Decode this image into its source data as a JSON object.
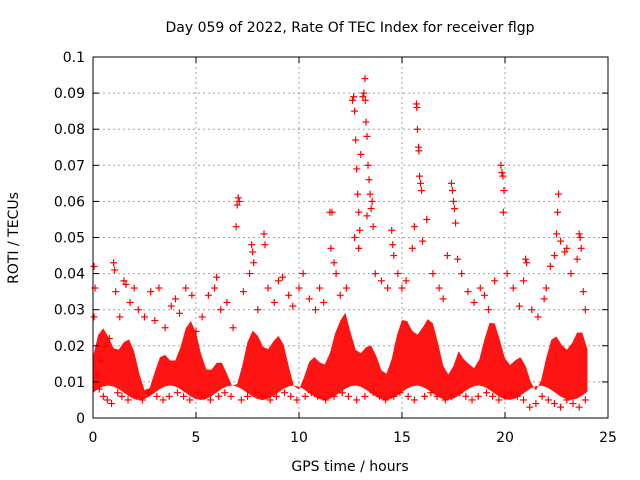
{
  "chart_data": {
    "type": "scatter",
    "title": "Day 059 of 2022, Rate Of TEC Index for receiver flgp",
    "xlabel": "GPS time / hours",
    "ylabel": "ROTI / TECUs",
    "xlim": [
      0,
      25
    ],
    "ylim": [
      0,
      0.1
    ],
    "x_ticks": [
      0,
      5,
      10,
      15,
      20,
      25
    ],
    "x_tick_labels": [
      "0",
      "5",
      "10",
      "15",
      "20",
      "25"
    ],
    "y_ticks": [
      0,
      0.01,
      0.02,
      0.03,
      0.04,
      0.05,
      0.06,
      0.07,
      0.08,
      0.09,
      0.1
    ],
    "y_tick_labels": [
      "0",
      "0.01",
      "0.02",
      "0.03",
      "0.04",
      "0.05",
      "0.06",
      "0.07",
      "0.08",
      "0.09",
      "0.1"
    ],
    "grid": true,
    "marker": "+",
    "color": "#ff0000",
    "series": [
      {
        "name": "ROTI",
        "points": [
          [
            0.05,
            0.042
          ],
          [
            0.1,
            0.036
          ],
          [
            0.05,
            0.028
          ],
          [
            0.2,
            0.012
          ],
          [
            0.4,
            0.016
          ],
          [
            0.6,
            0.02
          ],
          [
            0.8,
            0.022
          ],
          [
            1.0,
            0.043
          ],
          [
            1.05,
            0.041
          ],
          [
            1.1,
            0.035
          ],
          [
            1.3,
            0.028
          ],
          [
            1.5,
            0.038
          ],
          [
            1.6,
            0.037
          ],
          [
            1.8,
            0.032
          ],
          [
            2.0,
            0.036
          ],
          [
            2.2,
            0.03
          ],
          [
            2.5,
            0.028
          ],
          [
            2.8,
            0.035
          ],
          [
            3.0,
            0.027
          ],
          [
            3.2,
            0.036
          ],
          [
            3.5,
            0.025
          ],
          [
            3.8,
            0.031
          ],
          [
            4.0,
            0.033
          ],
          [
            4.2,
            0.029
          ],
          [
            4.5,
            0.036
          ],
          [
            4.8,
            0.034
          ],
          [
            5.0,
            0.024
          ],
          [
            5.3,
            0.028
          ],
          [
            5.6,
            0.034
          ],
          [
            5.9,
            0.036
          ],
          [
            6.0,
            0.039
          ],
          [
            6.2,
            0.03
          ],
          [
            6.5,
            0.032
          ],
          [
            6.8,
            0.025
          ],
          [
            6.95,
            0.053
          ],
          [
            7.0,
            0.059
          ],
          [
            7.05,
            0.061
          ],
          [
            7.1,
            0.06
          ],
          [
            7.3,
            0.035
          ],
          [
            7.6,
            0.04
          ],
          [
            7.7,
            0.048
          ],
          [
            7.75,
            0.046
          ],
          [
            7.8,
            0.043
          ],
          [
            8.0,
            0.03
          ],
          [
            8.3,
            0.051
          ],
          [
            8.35,
            0.048
          ],
          [
            8.5,
            0.036
          ],
          [
            8.8,
            0.032
          ],
          [
            9.0,
            0.038
          ],
          [
            9.2,
            0.039
          ],
          [
            9.5,
            0.034
          ],
          [
            9.7,
            0.031
          ],
          [
            10.0,
            0.036
          ],
          [
            10.2,
            0.04
          ],
          [
            10.5,
            0.033
          ],
          [
            10.8,
            0.03
          ],
          [
            11.0,
            0.036
          ],
          [
            11.2,
            0.032
          ],
          [
            11.5,
            0.057
          ],
          [
            11.6,
            0.057
          ],
          [
            11.55,
            0.047
          ],
          [
            11.7,
            0.043
          ],
          [
            11.8,
            0.04
          ],
          [
            12.0,
            0.034
          ],
          [
            12.3,
            0.036
          ],
          [
            12.6,
            0.088
          ],
          [
            12.65,
            0.089
          ],
          [
            12.7,
            0.085
          ],
          [
            12.75,
            0.077
          ],
          [
            12.8,
            0.069
          ],
          [
            12.85,
            0.062
          ],
          [
            12.9,
            0.057
          ],
          [
            12.95,
            0.052
          ],
          [
            12.7,
            0.05
          ],
          [
            12.9,
            0.047
          ],
          [
            13.0,
            0.073
          ],
          [
            13.1,
            0.089
          ],
          [
            13.15,
            0.09
          ],
          [
            13.2,
            0.094
          ],
          [
            13.22,
            0.088
          ],
          [
            13.25,
            0.082
          ],
          [
            13.3,
            0.078
          ],
          [
            13.35,
            0.07
          ],
          [
            13.4,
            0.066
          ],
          [
            13.45,
            0.062
          ],
          [
            13.5,
            0.058
          ],
          [
            13.55,
            0.06
          ],
          [
            13.6,
            0.053
          ],
          [
            13.3,
            0.056
          ],
          [
            13.7,
            0.04
          ],
          [
            14.0,
            0.038
          ],
          [
            14.3,
            0.036
          ],
          [
            14.5,
            0.052
          ],
          [
            14.55,
            0.048
          ],
          [
            14.6,
            0.045
          ],
          [
            14.8,
            0.04
          ],
          [
            15.0,
            0.036
          ],
          [
            15.2,
            0.038
          ],
          [
            15.5,
            0.047
          ],
          [
            15.6,
            0.053
          ],
          [
            15.7,
            0.087
          ],
          [
            15.72,
            0.086
          ],
          [
            15.75,
            0.08
          ],
          [
            15.8,
            0.075
          ],
          [
            15.82,
            0.074
          ],
          [
            15.85,
            0.067
          ],
          [
            15.9,
            0.065
          ],
          [
            15.95,
            0.063
          ],
          [
            16.0,
            0.049
          ],
          [
            16.2,
            0.055
          ],
          [
            16.5,
            0.04
          ],
          [
            16.8,
            0.036
          ],
          [
            17.0,
            0.033
          ],
          [
            17.2,
            0.045
          ],
          [
            17.4,
            0.065
          ],
          [
            17.45,
            0.063
          ],
          [
            17.5,
            0.06
          ],
          [
            17.55,
            0.058
          ],
          [
            17.6,
            0.054
          ],
          [
            17.7,
            0.044
          ],
          [
            17.9,
            0.04
          ],
          [
            18.2,
            0.035
          ],
          [
            18.5,
            0.032
          ],
          [
            18.8,
            0.036
          ],
          [
            19.0,
            0.034
          ],
          [
            19.2,
            0.03
          ],
          [
            19.5,
            0.038
          ],
          [
            19.8,
            0.07
          ],
          [
            19.85,
            0.068
          ],
          [
            19.9,
            0.067
          ],
          [
            19.95,
            0.063
          ],
          [
            19.92,
            0.057
          ],
          [
            20.1,
            0.04
          ],
          [
            20.4,
            0.036
          ],
          [
            20.7,
            0.031
          ],
          [
            20.9,
            0.038
          ],
          [
            21.0,
            0.044
          ],
          [
            21.05,
            0.043
          ],
          [
            21.3,
            0.03
          ],
          [
            21.6,
            0.028
          ],
          [
            21.9,
            0.033
          ],
          [
            22.0,
            0.036
          ],
          [
            22.2,
            0.042
          ],
          [
            22.4,
            0.045
          ],
          [
            22.5,
            0.051
          ],
          [
            22.55,
            0.057
          ],
          [
            22.6,
            0.062
          ],
          [
            22.7,
            0.049
          ],
          [
            22.9,
            0.046
          ],
          [
            23.0,
            0.047
          ],
          [
            23.2,
            0.04
          ],
          [
            23.5,
            0.044
          ],
          [
            23.6,
            0.051
          ],
          [
            23.65,
            0.05
          ],
          [
            23.7,
            0.047
          ],
          [
            23.8,
            0.035
          ],
          [
            23.9,
            0.03
          ],
          [
            0.3,
            0.008
          ],
          [
            0.5,
            0.006
          ],
          [
            0.7,
            0.005
          ],
          [
            0.9,
            0.004
          ],
          [
            1.2,
            0.007
          ],
          [
            1.4,
            0.006
          ],
          [
            1.7,
            0.005
          ],
          [
            2.1,
            0.006
          ],
          [
            2.4,
            0.005
          ],
          [
            2.7,
            0.007
          ],
          [
            3.1,
            0.006
          ],
          [
            3.4,
            0.005
          ],
          [
            3.7,
            0.006
          ],
          [
            4.1,
            0.007
          ],
          [
            4.4,
            0.006
          ],
          [
            4.7,
            0.005
          ],
          [
            5.1,
            0.007
          ],
          [
            5.4,
            0.006
          ],
          [
            5.7,
            0.005
          ],
          [
            6.1,
            0.006
          ],
          [
            6.4,
            0.007
          ],
          [
            6.7,
            0.006
          ],
          [
            7.2,
            0.005
          ],
          [
            7.5,
            0.006
          ],
          [
            7.9,
            0.007
          ],
          [
            8.2,
            0.006
          ],
          [
            8.6,
            0.005
          ],
          [
            8.9,
            0.006
          ],
          [
            9.3,
            0.007
          ],
          [
            9.6,
            0.006
          ],
          [
            9.9,
            0.005
          ],
          [
            10.3,
            0.006
          ],
          [
            10.6,
            0.007
          ],
          [
            10.9,
            0.006
          ],
          [
            11.3,
            0.005
          ],
          [
            11.7,
            0.006
          ],
          [
            12.1,
            0.007
          ],
          [
            12.4,
            0.006
          ],
          [
            12.8,
            0.005
          ],
          [
            13.2,
            0.006
          ],
          [
            13.6,
            0.007
          ],
          [
            13.9,
            0.006
          ],
          [
            14.2,
            0.005
          ],
          [
            14.6,
            0.006
          ],
          [
            14.9,
            0.007
          ],
          [
            15.3,
            0.006
          ],
          [
            15.6,
            0.005
          ],
          [
            16.1,
            0.006
          ],
          [
            16.4,
            0.007
          ],
          [
            16.7,
            0.006
          ],
          [
            17.1,
            0.005
          ],
          [
            17.4,
            0.006
          ],
          [
            17.8,
            0.007
          ],
          [
            18.1,
            0.006
          ],
          [
            18.4,
            0.005
          ],
          [
            18.7,
            0.006
          ],
          [
            19.1,
            0.007
          ],
          [
            19.4,
            0.006
          ],
          [
            19.7,
            0.005
          ],
          [
            20.0,
            0.006
          ],
          [
            20.3,
            0.007
          ],
          [
            20.6,
            0.006
          ],
          [
            20.9,
            0.005
          ],
          [
            21.2,
            0.003
          ],
          [
            21.5,
            0.004
          ],
          [
            21.8,
            0.006
          ],
          [
            22.1,
            0.005
          ],
          [
            22.4,
            0.004
          ],
          [
            22.7,
            0.003
          ],
          [
            23.0,
            0.005
          ],
          [
            23.3,
            0.004
          ],
          [
            23.6,
            0.003
          ],
          [
            23.9,
            0.005
          ]
        ]
      }
    ]
  }
}
